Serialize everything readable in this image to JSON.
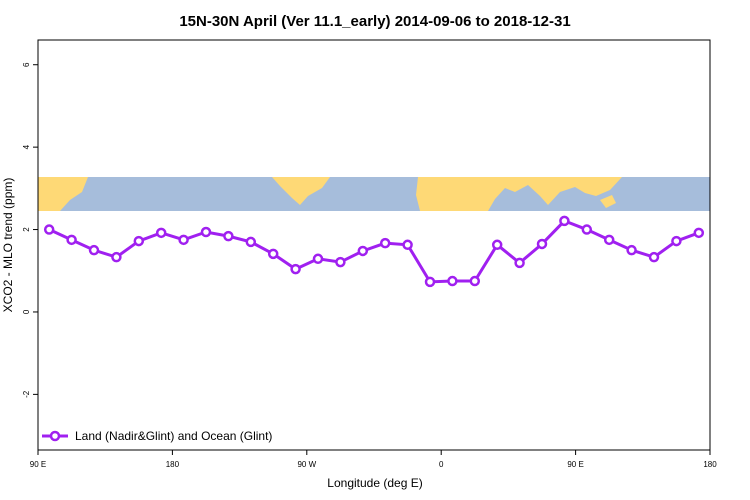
{
  "chart_data": {
    "type": "line",
    "title": "15N-30N April (Ver 11.1_early)   2014-09-06 to 2018-12-31",
    "x_label": "Longitude (deg E)",
    "y_label": "XCO2 - MLO trend (ppm)",
    "x": [
      97.5,
      112.5,
      127.5,
      142.5,
      157.5,
      172.5,
      187.5,
      202.5,
      217.5,
      232.5,
      247.5,
      262.5,
      277.5,
      292.5,
      307.5,
      322.5,
      337.5,
      352.5,
      367.5,
      382.5,
      397.5,
      412.5,
      427.5,
      442.5,
      457.5,
      472.5,
      487.5,
      502.5,
      517.5,
      532.5
    ],
    "series": [
      {
        "name": "Land (Nadir&Glint) and Ocean (Glint)",
        "color": "#a020f0",
        "values": [
          2.0,
          1.75,
          1.5,
          1.33,
          1.72,
          1.92,
          1.75,
          1.94,
          1.84,
          1.7,
          1.41,
          1.04,
          1.29,
          1.21,
          1.48,
          1.67,
          1.63,
          0.73,
          0.75,
          0.75,
          1.63,
          1.19,
          1.65,
          2.21,
          2.0,
          1.75,
          1.5,
          1.33,
          1.72,
          1.92
        ]
      }
    ],
    "xlim": [
      90,
      540
    ],
    "xticks": [
      {
        "value": 90,
        "label": "90 E"
      },
      180,
      {
        "value": 270,
        "label": "90 W"
      },
      {
        "value": 360,
        "label": "0"
      },
      {
        "value": 450,
        "label": "90 E"
      },
      {
        "value": 540,
        "label": "180"
      }
    ],
    "ylim": [
      -3.35,
      6.6
    ],
    "yticks": [
      -2,
      0,
      2,
      4,
      6
    ],
    "legend": "bottom-left"
  }
}
